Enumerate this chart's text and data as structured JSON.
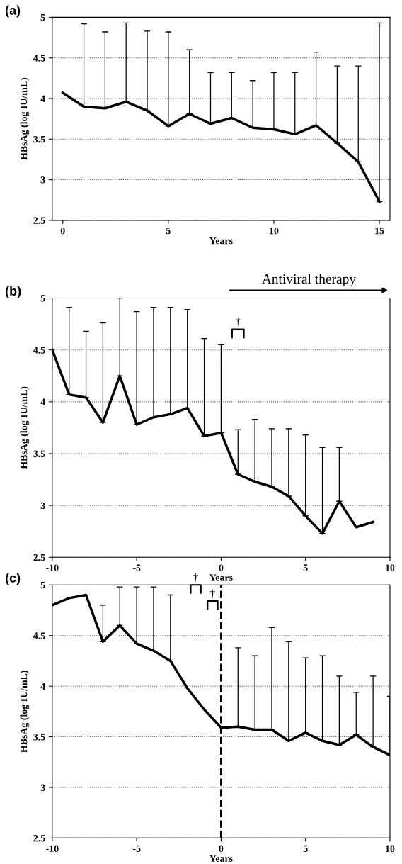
{
  "chart_data": [
    {
      "type": "line",
      "title": "(a)",
      "xlabel": "Years",
      "ylabel": "HBsAg (log IU/mL)",
      "xlim": [
        -0.5,
        15.5
      ],
      "xticks": [
        0,
        5,
        10,
        15
      ],
      "ylim": [
        2.5,
        5
      ],
      "yticks": [
        2.5,
        3,
        3.5,
        4,
        4.5,
        5
      ],
      "grid": "y",
      "marker": "none",
      "line_style": "solid",
      "x": [
        0,
        1,
        2,
        3,
        4,
        5,
        6,
        7,
        8,
        9,
        10,
        11,
        12,
        13,
        14,
        15
      ],
      "series": [
        {
          "color": "#000000",
          "values": [
            4.07,
            3.9,
            3.88,
            3.96,
            3.85,
            3.66,
            3.81,
            3.69,
            3.76,
            3.64,
            3.62,
            3.56,
            3.67,
            3.45,
            3.22,
            2.73
          ],
          "errors": [
            null,
            [
              3.9,
              4.92
            ],
            [
              3.88,
              4.82
            ],
            [
              3.96,
              4.93
            ],
            [
              3.85,
              4.83
            ],
            [
              3.66,
              4.82
            ],
            [
              3.81,
              4.6
            ],
            [
              3.69,
              4.32
            ],
            [
              3.76,
              4.32
            ],
            [
              3.64,
              4.22
            ],
            [
              3.62,
              4.32
            ],
            [
              3.56,
              4.32
            ],
            [
              3.67,
              4.57
            ],
            [
              3.45,
              4.4
            ],
            [
              3.22,
              4.4
            ],
            [
              2.73,
              4.93
            ]
          ]
        }
      ]
    },
    {
      "type": "line",
      "title": "(b)",
      "xlabel": "Years",
      "ylabel": "HBsAg (log IU/mL)",
      "xlim": [
        -10,
        10
      ],
      "xticks": [
        -10,
        -5,
        0,
        5,
        10
      ],
      "ylim": [
        2.5,
        5
      ],
      "yticks": [
        2.5,
        3,
        3.5,
        4,
        4.5,
        5
      ],
      "grid": "y",
      "marker": "none",
      "line_style": "solid",
      "x": [
        -10,
        -9,
        -8,
        -7,
        -6,
        -5,
        -4,
        -3,
        -2,
        -1,
        0,
        1,
        2,
        3,
        4,
        5,
        6,
        7,
        8,
        9
      ],
      "series": [
        {
          "color": "#000000",
          "values": [
            4.5,
            4.07,
            4.04,
            3.8,
            4.25,
            3.78,
            3.85,
            3.88,
            3.94,
            3.67,
            3.7,
            3.3,
            3.23,
            3.18,
            3.09,
            2.9,
            2.73,
            3.04,
            2.79,
            2.84
          ],
          "errors": [
            null,
            [
              4.07,
              4.91
            ],
            [
              4.04,
              4.68
            ],
            [
              3.8,
              4.76
            ],
            [
              4.25,
              5.0
            ],
            [
              3.78,
              4.87
            ],
            [
              3.85,
              4.91
            ],
            [
              3.88,
              4.91
            ],
            [
              3.94,
              4.89
            ],
            [
              3.67,
              4.61
            ],
            [
              3.7,
              4.55
            ],
            [
              3.3,
              3.73
            ],
            [
              3.23,
              3.83
            ],
            [
              3.18,
              3.74
            ],
            [
              3.09,
              3.74
            ],
            [
              2.9,
              3.68
            ],
            [
              2.73,
              3.56
            ],
            [
              3.04,
              3.56
            ],
            null,
            null
          ]
        }
      ],
      "annotations": [
        "Antiviral therapy",
        "†"
      ]
    },
    {
      "type": "line",
      "title": "(c)",
      "xlabel": "Years",
      "ylabel": "HBsAg (log IU/mL)",
      "xlim": [
        -10,
        10
      ],
      "xticks": [
        -10,
        -5,
        0,
        5,
        10
      ],
      "ylim": [
        2.5,
        5
      ],
      "yticks": [
        2.5,
        3,
        3.5,
        4,
        4.5,
        5
      ],
      "grid": "y",
      "marker": "none",
      "line_style": "solid",
      "x": [
        -10,
        -9,
        -8,
        -7,
        -6,
        -5,
        -4,
        -3,
        -2,
        -1,
        0,
        1,
        2,
        3,
        4,
        5,
        6,
        7,
        8,
        9,
        10
      ],
      "series": [
        {
          "color": "#000000",
          "values": [
            4.8,
            4.87,
            4.9,
            4.44,
            4.6,
            4.42,
            4.35,
            4.25,
            3.98,
            3.77,
            3.59,
            3.6,
            3.57,
            3.57,
            3.46,
            3.54,
            3.46,
            3.42,
            3.52,
            3.4,
            3.32
          ],
          "errors": [
            null,
            null,
            null,
            [
              4.44,
              4.8
            ],
            [
              4.6,
              4.98
            ],
            [
              4.42,
              4.98
            ],
            [
              4.35,
              4.98
            ],
            [
              4.25,
              4.9
            ],
            null,
            null,
            null,
            [
              3.6,
              4.38
            ],
            [
              3.57,
              4.3
            ],
            [
              3.57,
              4.58
            ],
            [
              3.46,
              4.44
            ],
            [
              3.54,
              4.28
            ],
            [
              3.46,
              4.3
            ],
            [
              3.42,
              4.1
            ],
            [
              3.52,
              3.94
            ],
            [
              3.4,
              4.1
            ],
            [
              3.32,
              3.9
            ]
          ]
        }
      ],
      "ref_lines": [
        {
          "axis": "x",
          "value": 0,
          "color": "#000000",
          "line_style": "dashed"
        }
      ],
      "annotations": [
        "†",
        "†"
      ]
    }
  ]
}
